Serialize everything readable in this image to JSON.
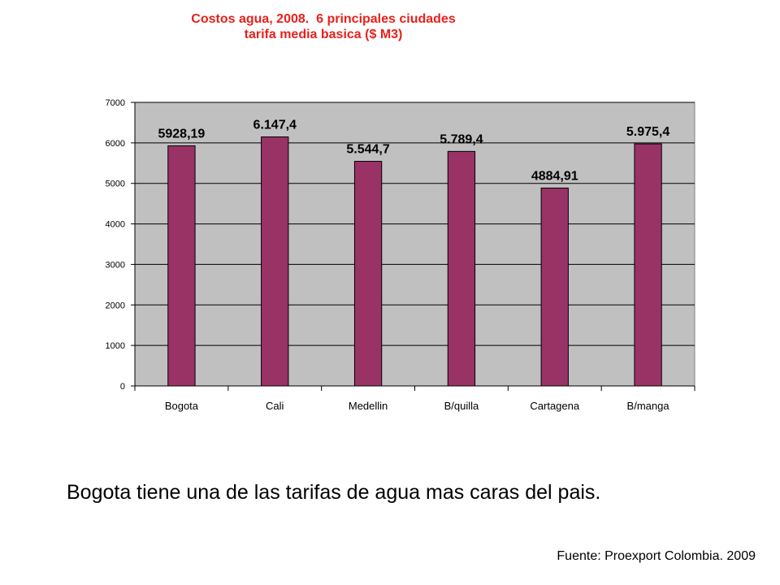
{
  "chart_data": {
    "type": "bar",
    "title": [
      "Costos agua, 2008.  6 principales ciudades",
      "tarifa media basica ($ M3)"
    ],
    "categories": [
      "Bogota",
      "Cali",
      "Medellin",
      "B/quilla",
      "Cartagena",
      "B/manga"
    ],
    "values": [
      5928.19,
      6147.4,
      5544.7,
      5789.4,
      4884.91,
      5975.4
    ],
    "data_labels": [
      "5928,19",
      "6.147,4",
      "5.544,7",
      "5.789,4",
      "4884,91",
      "5.975,4"
    ],
    "yticks": [
      "0",
      "1000",
      "2000",
      "3000",
      "4000",
      "5000",
      "6000",
      "7000"
    ],
    "ylim": [
      0,
      7000
    ],
    "xlabel": "",
    "ylabel": "",
    "grid": true,
    "legend": false,
    "colors": {
      "bar": "#993366",
      "plot_bg": "#c0c0c0",
      "title": "#e8211c"
    }
  },
  "caption": "Bogota tiene una de las tarifas de agua mas caras del pais.",
  "source": "Fuente: Proexport Colombia. 2009"
}
